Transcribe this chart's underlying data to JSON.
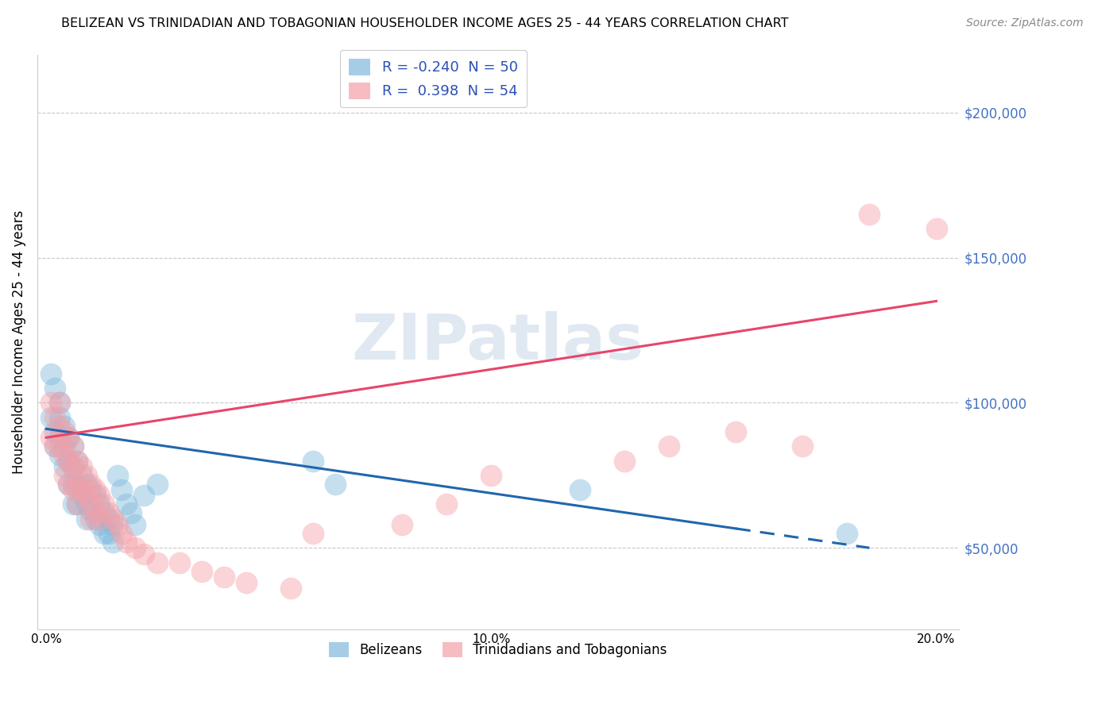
{
  "title": "BELIZEAN VS TRINIDADIAN AND TOBAGONIAN HOUSEHOLDER INCOME AGES 25 - 44 YEARS CORRELATION CHART",
  "source": "Source: ZipAtlas.com",
  "ylabel": "Householder Income Ages 25 - 44 years",
  "xlim": [
    -0.002,
    0.205
  ],
  "ylim": [
    22000,
    220000
  ],
  "yticks": [
    50000,
    100000,
    150000,
    200000
  ],
  "ytick_labels": [
    "$50,000",
    "$100,000",
    "$150,000",
    "$200,000"
  ],
  "xticks": [
    0.0,
    0.05,
    0.1,
    0.15,
    0.2
  ],
  "xtick_labels": [
    "0.0%",
    "",
    "10.0%",
    "",
    "20.0%"
  ],
  "belizean_color": "#7fbadc",
  "trinidadian_color": "#f4a0a8",
  "belizean_R": -0.24,
  "belizean_N": 50,
  "trinidadian_R": 0.398,
  "trinidadian_N": 54,
  "watermark": "ZIPatlas",
  "legend_labels": [
    "Belizeans",
    "Trinidadians and Tobagonians"
  ],
  "belizean_line_color": "#2166ac",
  "trinidadian_line_color": "#e8456a",
  "belizean_x": [
    0.001,
    0.001,
    0.002,
    0.002,
    0.002,
    0.003,
    0.003,
    0.003,
    0.003,
    0.004,
    0.004,
    0.004,
    0.005,
    0.005,
    0.005,
    0.006,
    0.006,
    0.006,
    0.006,
    0.007,
    0.007,
    0.007,
    0.008,
    0.008,
    0.009,
    0.009,
    0.009,
    0.01,
    0.01,
    0.011,
    0.011,
    0.012,
    0.012,
    0.013,
    0.013,
    0.014,
    0.014,
    0.015,
    0.015,
    0.016,
    0.017,
    0.018,
    0.019,
    0.02,
    0.022,
    0.025,
    0.06,
    0.065,
    0.12,
    0.18
  ],
  "belizean_y": [
    110000,
    95000,
    105000,
    90000,
    85000,
    100000,
    95000,
    88000,
    82000,
    92000,
    85000,
    78000,
    88000,
    80000,
    72000,
    85000,
    78000,
    72000,
    65000,
    80000,
    72000,
    65000,
    75000,
    68000,
    72000,
    65000,
    60000,
    70000,
    63000,
    68000,
    60000,
    65000,
    58000,
    62000,
    55000,
    60000,
    55000,
    58000,
    52000,
    75000,
    70000,
    65000,
    62000,
    58000,
    68000,
    72000,
    80000,
    72000,
    70000,
    55000
  ],
  "trinidadian_x": [
    0.001,
    0.001,
    0.002,
    0.002,
    0.003,
    0.003,
    0.003,
    0.004,
    0.004,
    0.004,
    0.005,
    0.005,
    0.005,
    0.006,
    0.006,
    0.006,
    0.007,
    0.007,
    0.007,
    0.008,
    0.008,
    0.009,
    0.009,
    0.01,
    0.01,
    0.01,
    0.011,
    0.011,
    0.012,
    0.012,
    0.013,
    0.014,
    0.015,
    0.016,
    0.017,
    0.018,
    0.02,
    0.022,
    0.025,
    0.03,
    0.035,
    0.04,
    0.045,
    0.055,
    0.06,
    0.08,
    0.09,
    0.1,
    0.13,
    0.14,
    0.155,
    0.17,
    0.185,
    0.2
  ],
  "trinidadian_y": [
    100000,
    88000,
    95000,
    85000,
    100000,
    92000,
    85000,
    90000,
    82000,
    75000,
    88000,
    80000,
    72000,
    85000,
    78000,
    70000,
    80000,
    72000,
    65000,
    78000,
    70000,
    75000,
    68000,
    72000,
    65000,
    60000,
    70000,
    62000,
    68000,
    60000,
    65000,
    62000,
    60000,
    58000,
    55000,
    52000,
    50000,
    48000,
    45000,
    45000,
    42000,
    40000,
    38000,
    36000,
    55000,
    58000,
    65000,
    75000,
    80000,
    85000,
    90000,
    85000,
    165000,
    160000
  ]
}
